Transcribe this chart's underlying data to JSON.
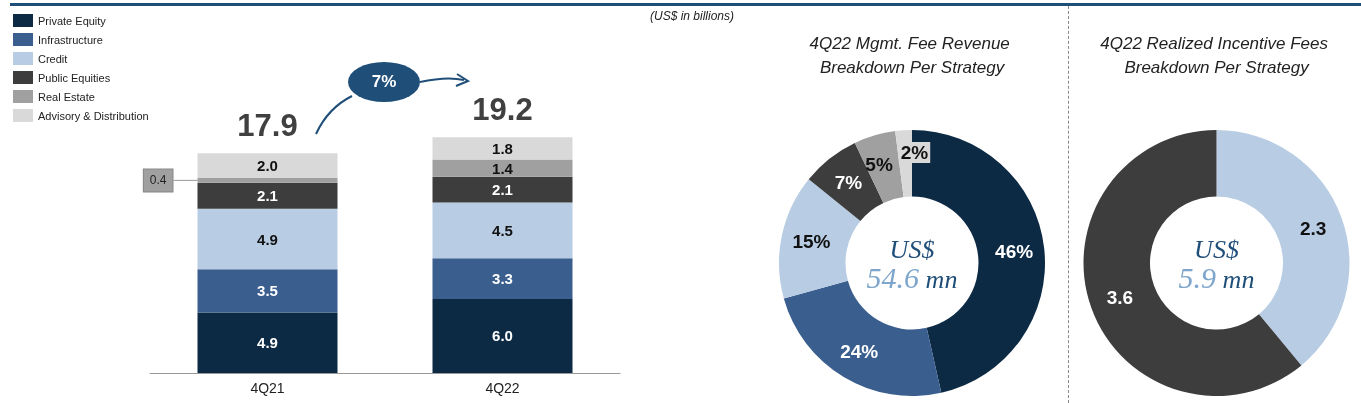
{
  "chart_data": [
    {
      "type": "bar",
      "stacked": true,
      "categories": [
        "4Q21",
        "4Q22"
      ],
      "series": [
        {
          "name": "Private Equity",
          "color": "#0d2a45",
          "values": [
            4.9,
            6.0
          ],
          "value_labels": [
            "4.9",
            "6.0"
          ]
        },
        {
          "name": "Infrastructure",
          "color": "#3a5f8f",
          "values": [
            3.5,
            3.3
          ],
          "value_labels": [
            "3.5",
            "3.3"
          ]
        },
        {
          "name": "Credit",
          "color": "#b8cce4",
          "values": [
            4.9,
            4.5
          ],
          "value_labels": [
            "4.9",
            "4.5"
          ]
        },
        {
          "name": "Public Equities",
          "color": "#3d3d3d",
          "values": [
            2.1,
            2.1
          ],
          "value_labels": [
            "2.1",
            "2.1"
          ]
        },
        {
          "name": "Real Estate",
          "color": "#a0a0a0",
          "values": [
            0.4,
            1.4
          ],
          "value_labels": [
            "0.4",
            "1.4"
          ]
        },
        {
          "name": "Advisory & Distribution",
          "color": "#d9d9d9",
          "values": [
            2.0,
            1.8
          ],
          "value_labels": [
            "2.0",
            "1.8"
          ]
        }
      ],
      "totals": [
        "17.9",
        "19.2"
      ],
      "legend": "top left",
      "annotations": [
        "(US$ in billions)",
        "7%"
      ]
    },
    {
      "type": "donut",
      "title": "4Q22 Mgmt. Fee Revenue Breakdown Per Strategy",
      "categories": [
        null,
        null,
        null,
        null,
        null,
        null
      ],
      "values": [
        46,
        24,
        15,
        7,
        5,
        2
      ],
      "value_labels": [
        "46%",
        "24%",
        "15%",
        "7%",
        "5%",
        "2%"
      ],
      "colors": [
        "#0d2a45",
        "#3a5f8f",
        "#b8cce4",
        "#3d3d3d",
        "#a0a0a0",
        "#d9d9d9"
      ],
      "annotations": [
        "US$ 54.6 mn"
      ]
    },
    {
      "type": "donut",
      "title": "4Q22 Realized Incentive Fees Breakdown Per Strategy",
      "categories": [
        null,
        null
      ],
      "values": [
        2.3,
        3.6
      ],
      "colors": [
        "#b8cce4",
        "#3d3d3d"
      ],
      "data_labels": true,
      "annotations": [
        "US$ 5.9 mn"
      ]
    }
  ]
}
